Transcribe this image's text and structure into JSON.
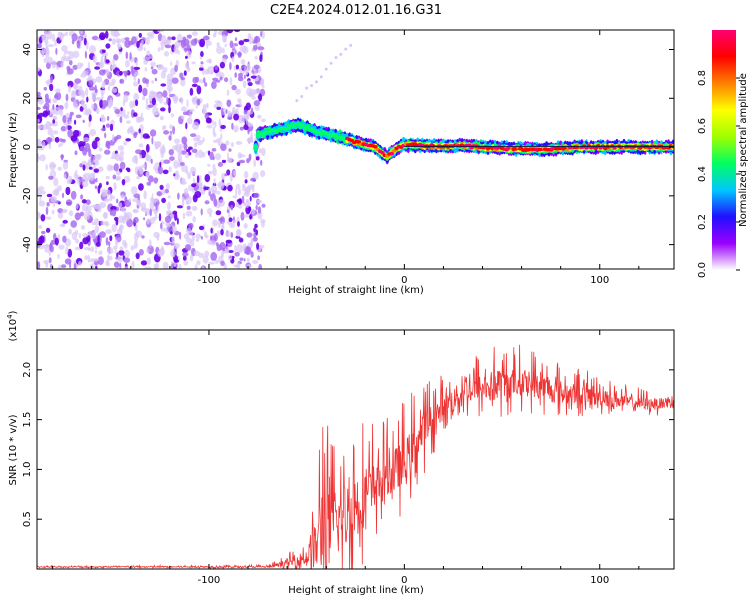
{
  "title": "C2E4.2024.012.01.16.G31",
  "chart_data": [
    {
      "type": "heatmap",
      "xlabel": "Height of straight line (km)",
      "ylabel": "Frequency (Hz)",
      "xlim": [
        -188,
        138
      ],
      "ylim": [
        -50,
        48
      ],
      "xticks": [
        -100,
        0,
        100
      ],
      "yticks": [
        -40,
        -20,
        0,
        20,
        40
      ],
      "noise_region_end_x": -72,
      "ridge": [
        {
          "x": -75,
          "y": 5
        },
        {
          "x": -70,
          "y": 6
        },
        {
          "x": -65,
          "y": 7
        },
        {
          "x": -60,
          "y": 8
        },
        {
          "x": -55,
          "y": 9
        },
        {
          "x": -50,
          "y": 8
        },
        {
          "x": -47,
          "y": 7
        },
        {
          "x": -44,
          "y": 6
        },
        {
          "x": -40,
          "y": 5.5
        },
        {
          "x": -35,
          "y": 4.5
        },
        {
          "x": -30,
          "y": 3.5
        },
        {
          "x": -25,
          "y": 2
        },
        {
          "x": -20,
          "y": 1
        },
        {
          "x": -15,
          "y": 0
        },
        {
          "x": -12,
          "y": -2
        },
        {
          "x": -9,
          "y": -4
        },
        {
          "x": -6,
          "y": -2
        },
        {
          "x": -3,
          "y": 0
        },
        {
          "x": 0,
          "y": 1
        },
        {
          "x": 10,
          "y": 0.5
        },
        {
          "x": 30,
          "y": 0.5
        },
        {
          "x": 50,
          "y": -0.5
        },
        {
          "x": 70,
          "y": -1
        },
        {
          "x": 90,
          "y": 0
        },
        {
          "x": 110,
          "y": 0
        },
        {
          "x": 138,
          "y": 0
        }
      ],
      "colorbar": {
        "label": "Normalized spectral amplitude",
        "ticks": [
          "0.0",
          "0.2",
          "0.4",
          "0.6",
          "0.8"
        ],
        "range": [
          0,
          1
        ],
        "colors": [
          "#ffffff",
          "#9a00ff",
          "#2010ff",
          "#00c8ff",
          "#00ff60",
          "#a0ff00",
          "#ffff00",
          "#ff8000",
          "#ff0000",
          "#ff0070"
        ]
      }
    },
    {
      "type": "line",
      "xlabel": "Height of straight line (km)",
      "ylabel": "SNR (10 * v/v)",
      "y_multiplier": "(x10",
      "y_multiplier_exp": "4",
      "y_multiplier_close": ")",
      "xlim": [
        -188,
        138
      ],
      "ylim": [
        0,
        2.4
      ],
      "xticks": [
        -100,
        0,
        100
      ],
      "yticks": [
        "0.5",
        "1.0",
        "1.5",
        "2.0"
      ],
      "color": "#ee3333",
      "envelope": [
        {
          "x": -188,
          "base": 0.02,
          "amp": 0.01
        },
        {
          "x": -70,
          "base": 0.02,
          "amp": 0.02
        },
        {
          "x": -60,
          "base": 0.05,
          "amp": 0.08
        },
        {
          "x": -50,
          "base": 0.1,
          "amp": 0.2
        },
        {
          "x": -45,
          "base": 0.2,
          "amp": 0.6
        },
        {
          "x": -42,
          "base": 0.3,
          "amp": 1.35
        },
        {
          "x": -38,
          "base": 0.35,
          "amp": 0.8
        },
        {
          "x": -30,
          "base": 0.45,
          "amp": 0.9
        },
        {
          "x": -24,
          "base": 0.6,
          "amp": 0.8
        },
        {
          "x": -18,
          "base": 0.7,
          "amp": 0.7
        },
        {
          "x": -10,
          "base": 0.9,
          "amp": 0.5
        },
        {
          "x": 0,
          "base": 1.0,
          "amp": 0.6
        },
        {
          "x": 10,
          "base": 1.35,
          "amp": 0.5
        },
        {
          "x": 20,
          "base": 1.6,
          "amp": 0.3
        },
        {
          "x": 30,
          "base": 1.75,
          "amp": 0.3
        },
        {
          "x": 45,
          "base": 1.8,
          "amp": 0.4
        },
        {
          "x": 60,
          "base": 1.85,
          "amp": 0.35
        },
        {
          "x": 80,
          "base": 1.75,
          "amp": 0.3
        },
        {
          "x": 100,
          "base": 1.7,
          "amp": 0.2
        },
        {
          "x": 120,
          "base": 1.65,
          "amp": 0.15
        },
        {
          "x": 138,
          "base": 1.65,
          "amp": 0.12
        }
      ]
    }
  ]
}
